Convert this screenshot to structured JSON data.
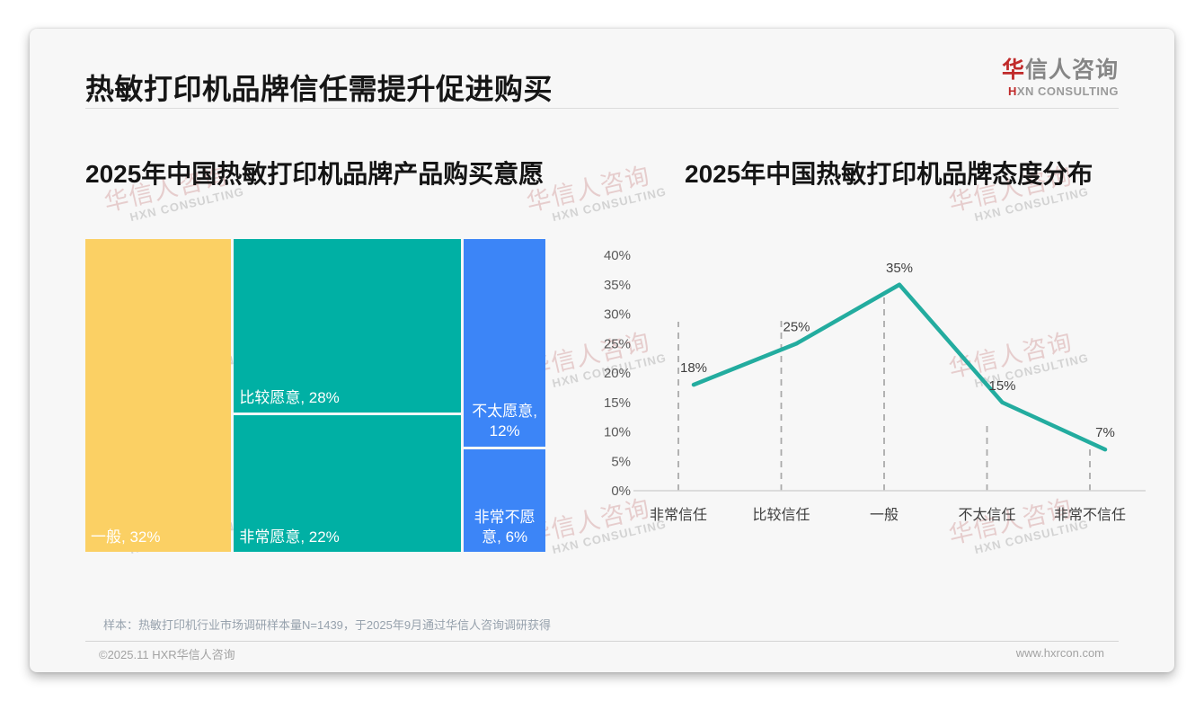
{
  "page": {
    "title": "热敏打印机品牌信任需提升促进购买",
    "logo": {
      "cn_first": "华",
      "cn_rest": "信人咨询",
      "en_first": "H",
      "en_rest": "XN CONSULTING"
    },
    "watermark": {
      "cn": "华信人咨询",
      "en": "HXN CONSULTING"
    },
    "footnote": "样本：热敏打印机行业市场调研样本量N=1439，于2025年9月通过华信人咨询调研获得",
    "copyright": "©2025.11 HXR华信人咨询",
    "website": "www.hxrcon.com"
  },
  "chart_data": [
    {
      "type": "treemap",
      "title": "2025年中国热敏打印机品牌产品购买意愿",
      "items": [
        {
          "label": "一般",
          "value": 32,
          "display": "一般, 32%",
          "color": "#FBD064",
          "label_align": "left"
        },
        {
          "label": "比较愿意",
          "value": 28,
          "display": "比较愿意, 28%",
          "color": "#00B0A4",
          "label_align": "left"
        },
        {
          "label": "非常愿意",
          "value": 22,
          "display": "非常愿意, 22%",
          "color": "#00B0A4",
          "label_align": "left"
        },
        {
          "label": "不太愿意",
          "value": 12,
          "display": "不太愿意, 12%",
          "color": "#3C85F7",
          "label_align": "center"
        },
        {
          "label": "非常不愿意",
          "value": 6,
          "display": "非常不愿意, 6%",
          "color": "#3C85F7",
          "label_align": "center"
        }
      ],
      "columns": [
        [
          0
        ],
        [
          1,
          2
        ],
        [
          3,
          4
        ]
      ],
      "gap_color": "#ffffff"
    },
    {
      "type": "line",
      "title": "2025年中国热敏打印机品牌态度分布",
      "categories": [
        "非常信任",
        "比较信任",
        "一般",
        "不太信任",
        "非常不信任"
      ],
      "values": [
        18,
        25,
        35,
        15,
        7
      ],
      "point_labels": [
        "18%",
        "25%",
        "35%",
        "15%",
        "7%"
      ],
      "ylim": [
        0,
        40
      ],
      "ytick_step": 5,
      "ytick_labels": [
        "0%",
        "5%",
        "10%",
        "15%",
        "20%",
        "25%",
        "30%",
        "35%",
        "40%"
      ],
      "line_color": "#23AC9F",
      "guide_line_tops_pct": [
        28.7,
        29.0,
        33.0,
        11.9,
        7.3
      ],
      "grid": "dashed-vertical",
      "legend": "none"
    }
  ]
}
